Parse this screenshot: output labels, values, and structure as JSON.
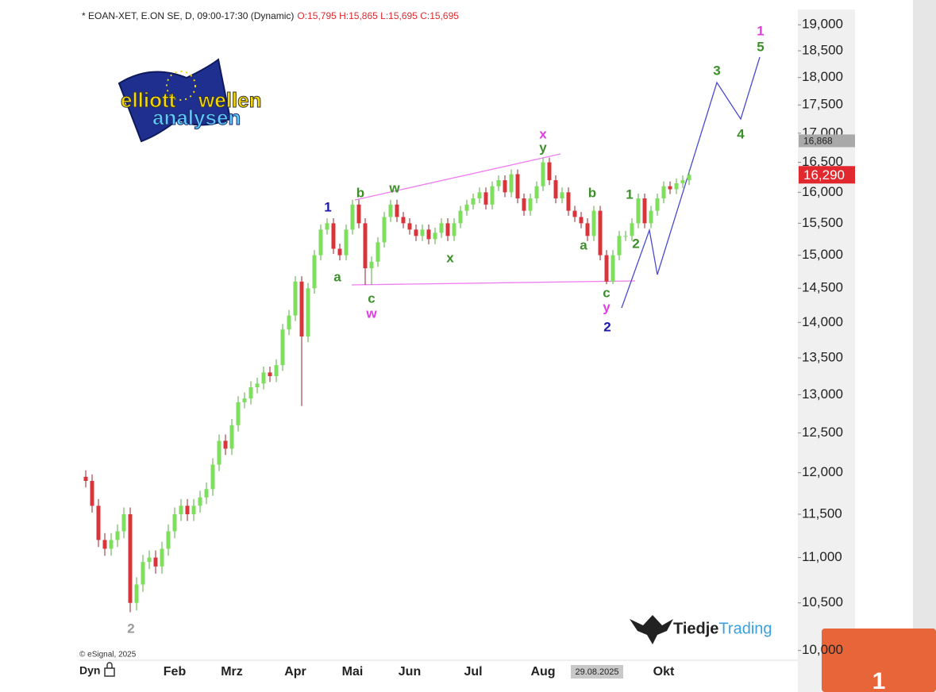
{
  "chart_data": {
    "type": "candlestick",
    "title": "* EOAN-XET, E.ON SE, D, 09:00-17:30 (Dynamic)",
    "subtitle": "O:15,795 H:15,865 L:15,695 C:15,695",
    "source": "© eSignal, 2025",
    "axis_corner_label": "Dyn",
    "logo": [
      "elliott",
      "wellen",
      "analysen"
    ],
    "brand": [
      "Tiedje",
      "Trading"
    ],
    "log_scale": true,
    "grid": false,
    "up_color": "#7ddf5c",
    "down_color": "#d9343a",
    "ylim": [
      9900,
      19300
    ],
    "yticks": [
      {
        "value": 10000,
        "label": "10,000"
      },
      {
        "value": 10500,
        "label": "10,500"
      },
      {
        "value": 11000,
        "label": "11,000"
      },
      {
        "value": 11500,
        "label": "11,500"
      },
      {
        "value": 12000,
        "label": "12,000"
      },
      {
        "value": 12500,
        "label": "12,500"
      },
      {
        "value": 13000,
        "label": "13,000"
      },
      {
        "value": 13500,
        "label": "13,500"
      },
      {
        "value": 14000,
        "label": "14,000"
      },
      {
        "value": 14500,
        "label": "14,500"
      },
      {
        "value": 15000,
        "label": "15,000"
      },
      {
        "value": 15500,
        "label": "15,500"
      },
      {
        "value": 16000,
        "label": "16,000"
      },
      {
        "value": 16500,
        "label": "16,500"
      },
      {
        "value": 17000,
        "label": "17,000"
      },
      {
        "value": 17500,
        "label": "17,500"
      },
      {
        "value": 18000,
        "label": "18,000"
      },
      {
        "value": 18500,
        "label": "18,500"
      },
      {
        "value": 19000,
        "label": "19,000"
      }
    ],
    "price_labels": [
      {
        "value": 16868,
        "label": "16,868",
        "color": "#a9a9a9"
      },
      {
        "value": 16290,
        "label": "16,290",
        "color": "#e0282e"
      }
    ],
    "categories": [
      null,
      null,
      null,
      null,
      null,
      null,
      null,
      null,
      null,
      null,
      null,
      null,
      null,
      null,
      "Feb",
      null,
      null,
      null,
      null,
      null,
      null,
      null,
      null,
      "Mrz",
      null,
      null,
      null,
      null,
      null,
      null,
      null,
      null,
      null,
      "Apr",
      null,
      null,
      null,
      null,
      null,
      null,
      null,
      null,
      "Mai",
      null,
      null,
      null,
      null,
      null,
      null,
      null,
      null,
      "Jun",
      null,
      null,
      null,
      null,
      null,
      null,
      null,
      null,
      null,
      "Jul",
      null,
      null,
      null,
      null,
      null,
      null,
      null,
      null,
      null,
      null,
      "Aug",
      null,
      null,
      null,
      null,
      null,
      null,
      null,
      null,
      "29.08.2025",
      null,
      null,
      null,
      null,
      null,
      null,
      null,
      null,
      null,
      "Okt",
      null,
      null,
      null,
      null
    ],
    "open": [
      11950,
      11900,
      11600,
      11200,
      11100,
      11200,
      11300,
      11500,
      10500,
      10700,
      10950,
      11000,
      10900,
      11100,
      11300,
      11500,
      11600,
      11500,
      11600,
      11700,
      11800,
      12100,
      12400,
      12300,
      12600,
      12900,
      12950,
      13100,
      13150,
      13300,
      13250,
      13400,
      13900,
      14100,
      14600,
      13800,
      14500,
      15000,
      15400,
      15500,
      15100,
      15000,
      15400,
      15800,
      15500,
      14800,
      14900,
      15200,
      15600,
      15800,
      15600,
      15500,
      15400,
      15300,
      15400,
      15250,
      15350,
      15500,
      15300,
      15500,
      15700,
      15800,
      15900,
      16000,
      15800,
      16100,
      16200,
      16000,
      16300,
      15900,
      15700,
      15900,
      16100,
      16500,
      16200,
      15900,
      16000,
      15700,
      15600,
      15500,
      15300,
      15700,
      15000,
      14600,
      15000,
      15300,
      15300,
      15500,
      15900,
      15500,
      15700,
      15900,
      16100,
      16050,
      16150,
      16200
    ],
    "high": [
      12030,
      11980,
      11680,
      11280,
      11280,
      11380,
      11580,
      11580,
      10780,
      11030,
      11080,
      11080,
      11180,
      11380,
      11580,
      11680,
      11680,
      11680,
      11780,
      11880,
      12180,
      12480,
      12480,
      12680,
      12980,
      13030,
      13180,
      13230,
      13380,
      13380,
      13480,
      13980,
      14180,
      14680,
      14680,
      14580,
      15080,
      15480,
      15580,
      15580,
      15180,
      15480,
      15880,
      15880,
      15580,
      14980,
      15280,
      15680,
      15880,
      15880,
      15680,
      15580,
      15480,
      15480,
      15480,
      15430,
      15580,
      15580,
      15580,
      15780,
      15880,
      15980,
      16080,
      16080,
      16180,
      16280,
      16280,
      16380,
      16380,
      15980,
      15980,
      16180,
      16580,
      16580,
      16280,
      16080,
      16080,
      15780,
      15680,
      15580,
      15780,
      15780,
      15080,
      15080,
      15380,
      15380,
      15580,
      15980,
      15980,
      15780,
      15980,
      16180,
      16180,
      16230,
      16280,
      16370
    ],
    "low": [
      11820,
      11520,
      11120,
      11020,
      11020,
      11120,
      11220,
      10400,
      10420,
      10620,
      10870,
      10820,
      10820,
      11020,
      11220,
      11420,
      11420,
      11420,
      11520,
      11620,
      11720,
      12020,
      12220,
      12220,
      12520,
      12820,
      12870,
      13020,
      13070,
      13170,
      13170,
      13320,
      13820,
      14020,
      12850,
      13720,
      14420,
      14920,
      15320,
      15020,
      14920,
      14920,
      15320,
      15420,
      14550,
      14550,
      14820,
      15120,
      15520,
      15520,
      15420,
      15320,
      15220,
      15220,
      15170,
      15170,
      15270,
      15220,
      15220,
      15420,
      15620,
      15720,
      15820,
      15720,
      15720,
      16020,
      15920,
      15920,
      15820,
      15620,
      15620,
      15820,
      16020,
      16120,
      15820,
      15820,
      15620,
      15520,
      15420,
      15220,
      15220,
      14920,
      14560,
      14560,
      14920,
      15220,
      15220,
      15420,
      15420,
      15420,
      15620,
      15820,
      15970,
      15970,
      16070,
      16120
    ],
    "close": [
      11900,
      11600,
      11200,
      11100,
      11200,
      11300,
      11500,
      10500,
      10700,
      10950,
      11000,
      10900,
      11100,
      11300,
      11500,
      11600,
      11500,
      11600,
      11700,
      11800,
      12100,
      12400,
      12300,
      12600,
      12900,
      12950,
      13100,
      13150,
      13300,
      13250,
      13400,
      13900,
      14100,
      14600,
      13800,
      14500,
      15000,
      15400,
      15500,
      15100,
      15000,
      15400,
      15800,
      15500,
      14800,
      14900,
      15200,
      15600,
      15800,
      15600,
      15500,
      15400,
      15300,
      15400,
      15250,
      15350,
      15500,
      15300,
      15500,
      15700,
      15800,
      15900,
      16000,
      15800,
      16100,
      16200,
      16000,
      16300,
      15900,
      15700,
      15900,
      16100,
      16500,
      16200,
      15900,
      16000,
      15700,
      15600,
      15500,
      15300,
      15700,
      15000,
      14600,
      15000,
      15300,
      15300,
      15500,
      15900,
      15500,
      15700,
      15900,
      16100,
      16050,
      16150,
      16200,
      16290
    ],
    "annotations": [
      {
        "text": "1",
        "color": "#e03ce0"
      },
      {
        "text": "5",
        "color": "#3c8f2a"
      },
      {
        "text": "3",
        "color": "#3c8f2a"
      },
      {
        "text": "4",
        "color": "#3c8f2a"
      },
      {
        "text": "x",
        "color": "#e03ce0"
      },
      {
        "text": "y",
        "color": "#3c8f2a"
      },
      {
        "text": "1",
        "color": "#1a1ab0"
      },
      {
        "text": "b",
        "color": "#3c8f2a"
      },
      {
        "text": "w",
        "color": "#3c8f2a"
      },
      {
        "text": "a",
        "color": "#3c8f2a"
      },
      {
        "text": "c",
        "color": "#3c8f2a"
      },
      {
        "text": "w",
        "color": "#e03ce0"
      },
      {
        "text": "x",
        "color": "#3c8f2a"
      },
      {
        "text": "b",
        "color": "#3c8f2a"
      },
      {
        "text": "a",
        "color": "#3c8f2a"
      },
      {
        "text": "1",
        "color": "#3c8f2a"
      },
      {
        "text": "2",
        "color": "#3c8f2a"
      },
      {
        "text": "c",
        "color": "#3c8f2a"
      },
      {
        "text": "y",
        "color": "#e03ce0"
      },
      {
        "text": "2",
        "color": "#1a1ab0"
      },
      {
        "text": "2",
        "color": "#9a9a9a"
      }
    ]
  },
  "badge": "1"
}
